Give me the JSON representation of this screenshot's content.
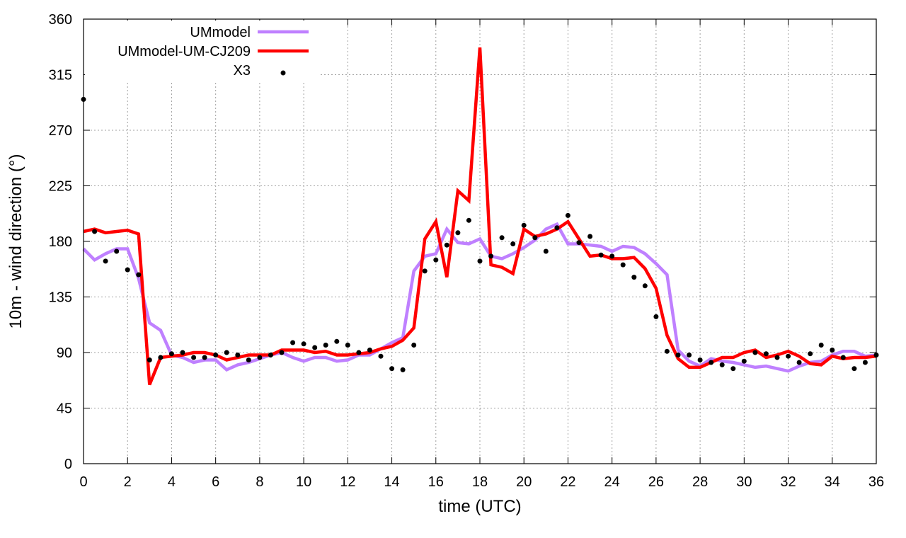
{
  "chart_data": {
    "type": "line",
    "title": "",
    "xlabel": "time (UTC)",
    "ylabel": "10m - wind direction (°)",
    "xlim": [
      0,
      36
    ],
    "ylim": [
      0,
      360
    ],
    "xticks": [
      0,
      2,
      4,
      6,
      8,
      10,
      12,
      14,
      16,
      18,
      20,
      22,
      24,
      26,
      28,
      30,
      32,
      34,
      36
    ],
    "yticks": [
      0,
      45,
      90,
      135,
      180,
      225,
      270,
      315,
      360
    ],
    "grid": true,
    "legend_position": "top-left",
    "series": [
      {
        "name": "UMmodel",
        "style": "line",
        "color": "#bf80ff",
        "x": [
          0,
          0.5,
          1,
          1.5,
          2,
          2.5,
          3,
          3.5,
          4,
          4.5,
          5,
          5.5,
          6,
          6.5,
          7,
          7.5,
          8,
          8.5,
          9,
          9.5,
          10,
          10.5,
          11,
          11.5,
          12,
          12.5,
          13,
          13.5,
          14,
          14.5,
          15,
          15.5,
          16,
          16.5,
          17,
          17.5,
          18,
          18.5,
          19,
          19.5,
          20,
          20.5,
          21,
          21.5,
          22,
          22.5,
          23,
          23.5,
          24,
          24.5,
          25,
          25.5,
          26,
          26.5,
          27,
          27.5,
          28,
          28.5,
          29,
          29.5,
          30,
          30.5,
          31,
          31.5,
          32,
          32.5,
          33,
          33.5,
          34,
          34.5,
          35,
          35.5,
          36
        ],
        "y": [
          174,
          165,
          170,
          174,
          174,
          150,
          114,
          108,
          88,
          86,
          82,
          84,
          84,
          76,
          80,
          82,
          85,
          88,
          90,
          86,
          83,
          86,
          86,
          83,
          84,
          88,
          88,
          93,
          98,
          102,
          156,
          168,
          170,
          190,
          179,
          178,
          182,
          168,
          166,
          170,
          175,
          181,
          190,
          194,
          178,
          178,
          177,
          176,
          172,
          176,
          175,
          170,
          162,
          153,
          92,
          83,
          79,
          85,
          83,
          82,
          80,
          78,
          79,
          77,
          75,
          79,
          82,
          83,
          88,
          91,
          91,
          87,
          88
        ]
      },
      {
        "name": "UMmodel-UM-CJ209",
        "style": "line",
        "color": "#ff0000",
        "x": [
          0,
          0.5,
          1,
          1.5,
          2,
          2.5,
          3,
          3.5,
          4,
          4.5,
          5,
          5.5,
          6,
          6.5,
          7,
          7.5,
          8,
          8.5,
          9,
          9.5,
          10,
          10.5,
          11,
          11.5,
          12,
          12.5,
          13,
          13.5,
          14,
          14.5,
          15,
          15.5,
          16,
          16.5,
          17,
          17.5,
          18,
          18.5,
          19,
          19.5,
          20,
          20.5,
          21,
          21.5,
          22,
          22.5,
          23,
          23.5,
          24,
          24.5,
          25,
          25.5,
          26,
          26.5,
          27,
          27.5,
          28,
          28.5,
          29,
          29.5,
          30,
          30.5,
          31,
          31.5,
          32,
          32.5,
          33,
          33.5,
          34,
          34.5,
          35,
          35.5,
          36
        ],
        "y": [
          188,
          190,
          187,
          188,
          189,
          186,
          64,
          86,
          87,
          88,
          90,
          90,
          88,
          84,
          86,
          88,
          88,
          88,
          92,
          92,
          92,
          90,
          91,
          88,
          88,
          89,
          90,
          93,
          95,
          100,
          110,
          182,
          196,
          151,
          221,
          213,
          337,
          161,
          159,
          154,
          190,
          184,
          186,
          190,
          196,
          182,
          168,
          169,
          166,
          166,
          167,
          158,
          142,
          104,
          85,
          78,
          78,
          82,
          86,
          86,
          90,
          92,
          86,
          88,
          91,
          87,
          81,
          80,
          87,
          85,
          86,
          86,
          87
        ]
      },
      {
        "name": "X3",
        "style": "points",
        "color": "#000000",
        "x": [
          0,
          0.5,
          1,
          1.5,
          2,
          2.5,
          3,
          3.5,
          4,
          4.5,
          5,
          5.5,
          6,
          6.5,
          7,
          7.5,
          8,
          8.5,
          9,
          9.5,
          10,
          10.5,
          11,
          11.5,
          12,
          12.5,
          13,
          13.5,
          14,
          14.5,
          15,
          15.5,
          16,
          16.5,
          17,
          17.5,
          18,
          18.5,
          19,
          19.5,
          20,
          20.5,
          21,
          21.5,
          22,
          22.5,
          23,
          23.5,
          24,
          24.5,
          25,
          25.5,
          26,
          26.5,
          27,
          27.5,
          28,
          28.5,
          29,
          29.5,
          30,
          30.5,
          31,
          31.5,
          32,
          32.5,
          33,
          33.5,
          34,
          34.5,
          35,
          35.5,
          36
        ],
        "y": [
          295,
          188,
          164,
          172,
          157,
          153,
          84,
          86,
          89,
          90,
          86,
          86,
          88,
          90,
          88,
          84,
          86,
          88,
          90,
          98,
          97,
          94,
          96,
          99,
          96,
          90,
          92,
          87,
          77,
          76,
          96,
          156,
          165,
          177,
          187,
          197,
          164,
          168,
          183,
          178,
          193,
          183,
          172,
          191,
          201,
          179,
          184,
          169,
          168,
          161,
          151,
          144,
          119,
          91,
          88,
          88,
          84,
          82,
          80,
          77,
          83,
          90,
          89,
          86,
          87,
          82,
          89,
          96,
          92,
          86,
          77,
          82,
          88
        ]
      }
    ]
  }
}
